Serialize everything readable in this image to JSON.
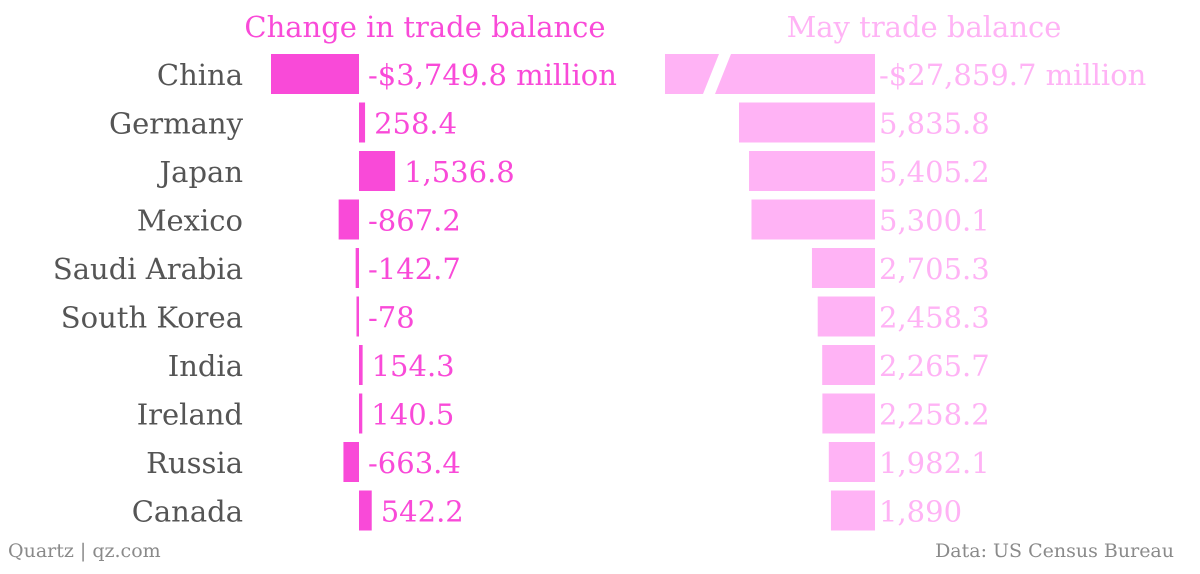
{
  "chart_data": [
    {
      "type": "bar",
      "orientation": "horizontal",
      "title": "Change in trade balance",
      "categories": [
        "China",
        "Germany",
        "Japan",
        "Mexico",
        "Saudi Arabia",
        "South Korea",
        "India",
        "Ireland",
        "Russia",
        "Canada"
      ],
      "values": [
        -3749.8,
        258.4,
        1536.8,
        -867.2,
        -142.7,
        -78,
        154.3,
        140.5,
        -663.4,
        542.2
      ],
      "value_labels": [
        "-$3,749.8 million",
        "258.4",
        "1,536.8",
        "-867.2",
        "-142.7",
        "-78",
        "154.3",
        "140.5",
        "-663.4",
        "542.2"
      ],
      "color": "#f94ad8"
    },
    {
      "type": "bar",
      "orientation": "horizontal",
      "title": "May trade balance",
      "categories": [
        "China",
        "Germany",
        "Japan",
        "Mexico",
        "Saudi Arabia",
        "South Korea",
        "India",
        "Ireland",
        "Russia",
        "Canada"
      ],
      "values": [
        -27859.7,
        5835.8,
        5405.2,
        5300.1,
        2705.3,
        2458.3,
        2265.7,
        2258.2,
        1982.1,
        1890
      ],
      "value_labels": [
        "-$27,859.7 million",
        "5,835.8",
        "5,405.2",
        "5,300.1",
        "2,705.3",
        "2,458.3",
        "2,265.7",
        "2,258.2",
        "1,982.1",
        "1,890"
      ],
      "axis_break": "China",
      "color": "#ffb3f5"
    }
  ],
  "footer": {
    "source_left": "Quartz | qz.com",
    "source_right": "Data: US Census Bureau"
  },
  "colors": {
    "category_text": "#555555",
    "footer_text": "#8a8a8a"
  }
}
